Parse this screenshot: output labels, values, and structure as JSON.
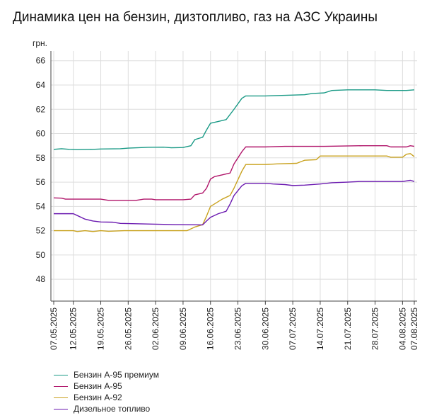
{
  "chart_data": {
    "type": "line",
    "title": "Динамика цен на бензин, дизтопливо, газ на АЗС Украины",
    "ylabel": "грн.",
    "ylim": [
      46.2,
      66.8
    ],
    "yticks": [
      48,
      50,
      52,
      54,
      56,
      58,
      60,
      62,
      64,
      66
    ],
    "grid": true,
    "legend_position": "bottom-left",
    "x_start": "2025-05-07",
    "x_end": "2025-08-07",
    "xticks": [
      "07.05.2025",
      "12.05.2025",
      "19.05.2025",
      "26.05.2025",
      "02.06.2025",
      "09.06.2025",
      "16.06.2025",
      "23.06.2025",
      "30.06.2025",
      "07.07.2025",
      "14.07.2025",
      "21.07.2025",
      "28.07.2025",
      "04.08.2025",
      "07.08.2025"
    ],
    "series": [
      {
        "name": "Бензин А-95 премиум",
        "color": "#1a9a86",
        "points": [
          [
            "2025-05-07",
            58.7
          ],
          [
            "2025-05-09",
            58.75
          ],
          [
            "2025-05-11",
            58.7
          ],
          [
            "2025-05-13",
            58.68
          ],
          [
            "2025-05-17",
            58.7
          ],
          [
            "2025-05-19",
            58.73
          ],
          [
            "2025-05-24",
            58.75
          ],
          [
            "2025-05-26",
            58.8
          ],
          [
            "2025-05-31",
            58.87
          ],
          [
            "2025-06-04",
            58.88
          ],
          [
            "2025-06-06",
            58.83
          ],
          [
            "2025-06-09",
            58.85
          ],
          [
            "2025-06-11",
            59.0
          ],
          [
            "2025-06-12",
            59.5
          ],
          [
            "2025-06-13",
            59.6
          ],
          [
            "2025-06-14",
            59.7
          ],
          [
            "2025-06-15",
            60.3
          ],
          [
            "2025-06-16",
            60.85
          ],
          [
            "2025-06-18",
            61.0
          ],
          [
            "2025-06-20",
            61.15
          ],
          [
            "2025-06-22",
            62.0
          ],
          [
            "2025-06-24",
            62.9
          ],
          [
            "2025-06-25",
            63.1
          ],
          [
            "2025-06-30",
            63.1
          ],
          [
            "2025-07-05",
            63.15
          ],
          [
            "2025-07-10",
            63.2
          ],
          [
            "2025-07-12",
            63.3
          ],
          [
            "2025-07-15",
            63.35
          ],
          [
            "2025-07-17",
            63.55
          ],
          [
            "2025-07-21",
            63.6
          ],
          [
            "2025-07-28",
            63.6
          ],
          [
            "2025-07-31",
            63.55
          ],
          [
            "2025-08-05",
            63.55
          ],
          [
            "2025-08-07",
            63.6
          ]
        ]
      },
      {
        "name": "Бензин А-95",
        "color": "#b0156a",
        "points": [
          [
            "2025-05-07",
            54.7
          ],
          [
            "2025-05-09",
            54.68
          ],
          [
            "2025-05-10",
            54.6
          ],
          [
            "2025-05-19",
            54.6
          ],
          [
            "2025-05-21",
            54.5
          ],
          [
            "2025-05-28",
            54.5
          ],
          [
            "2025-05-30",
            54.6
          ],
          [
            "2025-06-01",
            54.6
          ],
          [
            "2025-06-02",
            54.55
          ],
          [
            "2025-06-09",
            54.55
          ],
          [
            "2025-06-11",
            54.6
          ],
          [
            "2025-06-12",
            54.95
          ],
          [
            "2025-06-14",
            55.1
          ],
          [
            "2025-06-15",
            55.5
          ],
          [
            "2025-06-16",
            56.25
          ],
          [
            "2025-06-17",
            56.45
          ],
          [
            "2025-06-19",
            56.6
          ],
          [
            "2025-06-21",
            56.75
          ],
          [
            "2025-06-22",
            57.5
          ],
          [
            "2025-06-24",
            58.5
          ],
          [
            "2025-06-25",
            58.9
          ],
          [
            "2025-06-30",
            58.9
          ],
          [
            "2025-07-05",
            58.95
          ],
          [
            "2025-07-15",
            58.95
          ],
          [
            "2025-07-25",
            59.0
          ],
          [
            "2025-07-31",
            59.0
          ],
          [
            "2025-08-01",
            58.9
          ],
          [
            "2025-08-05",
            58.9
          ],
          [
            "2025-08-06",
            59.0
          ],
          [
            "2025-08-07",
            58.95
          ]
        ]
      },
      {
        "name": "Бензин А-92",
        "color": "#c9a21f",
        "points": [
          [
            "2025-05-07",
            52.0
          ],
          [
            "2025-05-12",
            52.0
          ],
          [
            "2025-05-13",
            51.93
          ],
          [
            "2025-05-15",
            52.0
          ],
          [
            "2025-05-17",
            51.93
          ],
          [
            "2025-05-19",
            52.0
          ],
          [
            "2025-05-21",
            51.95
          ],
          [
            "2025-05-25",
            52.0
          ],
          [
            "2025-06-10",
            52.0
          ],
          [
            "2025-06-12",
            52.3
          ],
          [
            "2025-06-14",
            52.5
          ],
          [
            "2025-06-15",
            53.2
          ],
          [
            "2025-06-16",
            54.0
          ],
          [
            "2025-06-17",
            54.2
          ],
          [
            "2025-06-19",
            54.6
          ],
          [
            "2025-06-21",
            54.9
          ],
          [
            "2025-06-22",
            55.5
          ],
          [
            "2025-06-24",
            56.9
          ],
          [
            "2025-06-25",
            57.45
          ],
          [
            "2025-06-30",
            57.45
          ],
          [
            "2025-07-03",
            57.5
          ],
          [
            "2025-07-08",
            57.55
          ],
          [
            "2025-07-10",
            57.8
          ],
          [
            "2025-07-13",
            57.85
          ],
          [
            "2025-07-14",
            58.15
          ],
          [
            "2025-07-31",
            58.15
          ],
          [
            "2025-08-01",
            58.05
          ],
          [
            "2025-08-04",
            58.05
          ],
          [
            "2025-08-05",
            58.3
          ],
          [
            "2025-08-06",
            58.35
          ],
          [
            "2025-08-07",
            58.1
          ]
        ]
      },
      {
        "name": "Дизельное топливо",
        "color": "#6b1ab0",
        "points": [
          [
            "2025-05-07",
            53.4
          ],
          [
            "2025-05-12",
            53.4
          ],
          [
            "2025-05-13",
            53.25
          ],
          [
            "2025-05-15",
            52.95
          ],
          [
            "2025-05-17",
            52.8
          ],
          [
            "2025-05-19",
            52.72
          ],
          [
            "2025-05-22",
            52.7
          ],
          [
            "2025-05-24",
            52.6
          ],
          [
            "2025-05-31",
            52.55
          ],
          [
            "2025-06-07",
            52.5
          ],
          [
            "2025-06-14",
            52.48
          ],
          [
            "2025-06-15",
            52.8
          ],
          [
            "2025-06-16",
            53.1
          ],
          [
            "2025-06-18",
            53.4
          ],
          [
            "2025-06-20",
            53.6
          ],
          [
            "2025-06-21",
            54.2
          ],
          [
            "2025-06-22",
            54.9
          ],
          [
            "2025-06-24",
            55.7
          ],
          [
            "2025-06-25",
            55.9
          ],
          [
            "2025-06-30",
            55.9
          ],
          [
            "2025-07-02",
            55.85
          ],
          [
            "2025-07-05",
            55.8
          ],
          [
            "2025-07-07",
            55.72
          ],
          [
            "2025-07-10",
            55.75
          ],
          [
            "2025-07-14",
            55.85
          ],
          [
            "2025-07-17",
            55.95
          ],
          [
            "2025-07-21",
            56.0
          ],
          [
            "2025-07-24",
            56.05
          ],
          [
            "2025-08-04",
            56.05
          ],
          [
            "2025-08-06",
            56.15
          ],
          [
            "2025-08-07",
            56.05
          ]
        ]
      }
    ]
  }
}
